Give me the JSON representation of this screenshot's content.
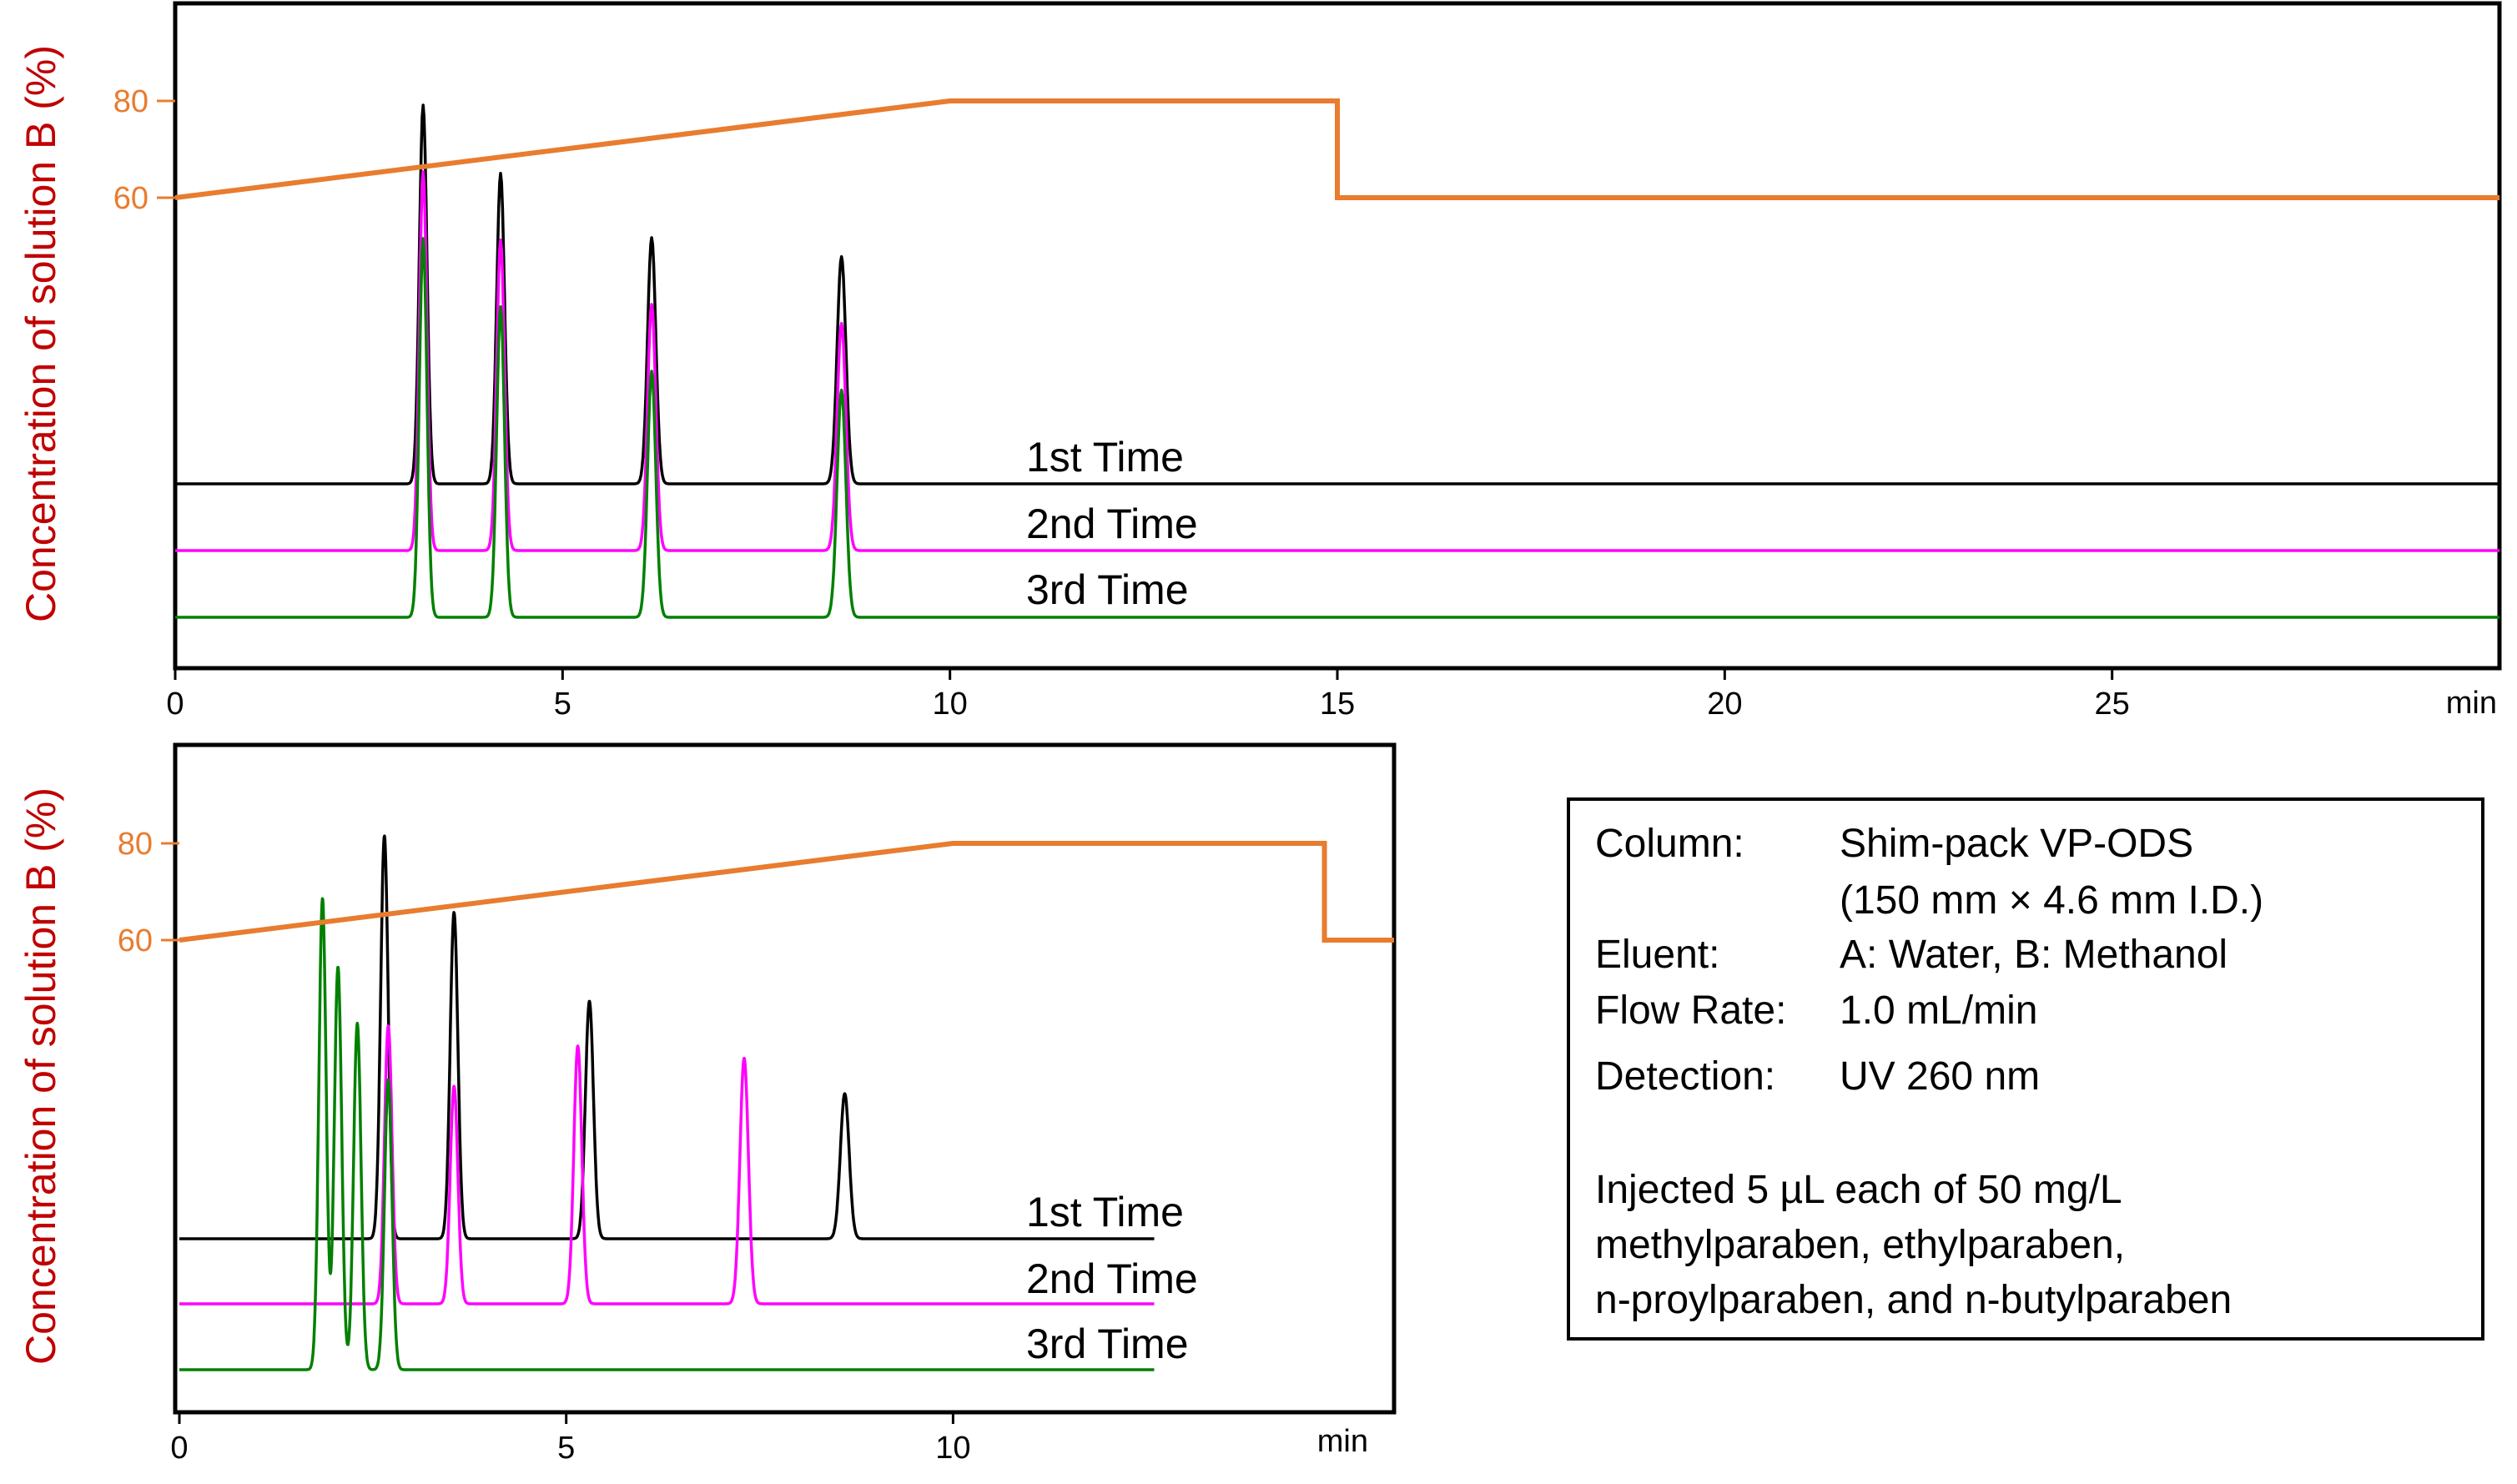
{
  "colors": {
    "run1": "#000000",
    "run2": "#ff00ff",
    "run3": "#008000",
    "gradient": "#e87c2f",
    "ylabel": "#c00000"
  },
  "chart_data": [
    {
      "type": "line",
      "xlabel": "",
      "ylabel": "Concentration of solution B (%)",
      "x_unit": "min",
      "xlim": [
        0,
        30
      ],
      "x_ticks": [
        "0",
        "5",
        "10",
        "15",
        "20",
        "25"
      ],
      "gradient_ticks": [
        "60",
        "80"
      ],
      "gradient": {
        "x": [
          0,
          10,
          15,
          15,
          30
        ],
        "y": [
          60,
          80,
          80,
          60,
          60
        ]
      },
      "peaks": [
        {
          "rt": 3.2,
          "height": 1.0
        },
        {
          "rt": 4.2,
          "height": 0.82
        },
        {
          "rt": 6.15,
          "height": 0.65
        },
        {
          "rt": 8.6,
          "height": 0.6
        }
      ],
      "series": [
        {
          "name": "1st Time"
        },
        {
          "name": "2nd Time"
        },
        {
          "name": "3rd Time"
        }
      ]
    },
    {
      "type": "line",
      "xlabel": "",
      "ylabel": "Concentration of solution B (%)",
      "x_unit": "min",
      "xlim": [
        0,
        15.7
      ],
      "x_ticks": [
        "0",
        "5",
        "10"
      ],
      "gradient_ticks": [
        "60",
        "80"
      ],
      "gradient": {
        "x": [
          0,
          10,
          14.8,
          14.8,
          15.7
        ],
        "y": [
          60,
          80,
          80,
          60,
          60
        ]
      },
      "series": [
        {
          "name": "1st Time",
          "end": 12.6,
          "peaks": [
            {
              "rt": 2.65,
              "height": 1.0
            },
            {
              "rt": 3.55,
              "height": 0.81
            },
            {
              "rt": 5.3,
              "height": 0.59
            },
            {
              "rt": 8.6,
              "height": 0.36
            }
          ]
        },
        {
          "name": "2nd Time",
          "end": 12.6,
          "peaks": [
            {
              "rt": 2.7,
              "height": 0.69
            },
            {
              "rt": 3.55,
              "height": 0.54
            },
            {
              "rt": 5.15,
              "height": 0.64
            },
            {
              "rt": 7.3,
              "height": 0.61
            }
          ]
        },
        {
          "name": "3rd Time",
          "end": 12.6,
          "peaks": [
            {
              "rt": 1.85,
              "height": 1.17
            },
            {
              "rt": 2.05,
              "height": 1.0
            },
            {
              "rt": 2.3,
              "height": 0.86
            },
            {
              "rt": 2.7,
              "height": 0.72
            }
          ]
        }
      ]
    }
  ],
  "conditions": {
    "column_label": "Column:",
    "column_value_1": "Shim-pack VP-ODS",
    "column_value_2": "(150 mm × 4.6 mm I.D.)",
    "eluent_label": "Eluent:",
    "eluent_value": "A: Water, B: Methanol",
    "flow_label": "Flow Rate:",
    "flow_value": "1.0 mL/min",
    "detection_label": "Detection:",
    "detection_value": "UV 260 nm",
    "note_1": "Injected 5 µL each of 50 mg/L",
    "note_2": "methylparaben, ethylparaben,",
    "note_3": "n-proylparaben, and n-butylparaben"
  }
}
